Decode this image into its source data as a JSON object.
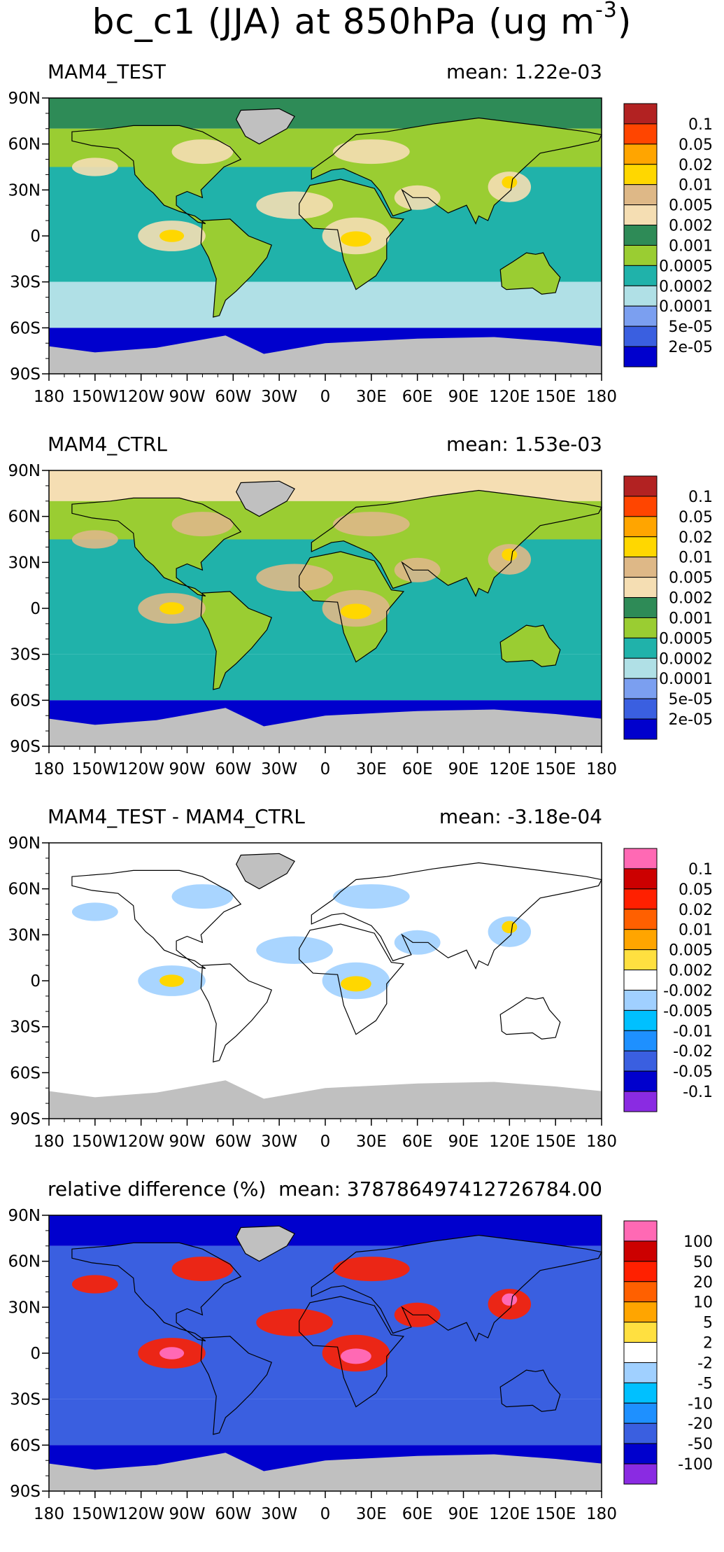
{
  "title": {
    "main": "bc_c1 (JJA) at 850hPa (ug m",
    "exponent": "-3",
    "close": ")"
  },
  "axes": {
    "lon_labels": [
      "180",
      "150W",
      "120W",
      "90W",
      "60W",
      "30W",
      "0",
      "30E",
      "60E",
      "90E",
      "120E",
      "150E",
      "180"
    ],
    "lat_labels": [
      "90N",
      "60N",
      "30N",
      "0",
      "30S",
      "60S",
      "90S"
    ]
  },
  "panels": [
    {
      "id": "test",
      "title": "MAM4_TEST",
      "mean": "mean: 1.22e-03",
      "colorbar_labels": [
        "0.1",
        "0.05",
        "0.02",
        "0.01",
        "0.005",
        "0.002",
        "0.001",
        "0.0005",
        "0.0002",
        "0.0001",
        "5e-05",
        "2e-05"
      ],
      "colorbar_colors": [
        "#b22222",
        "#ff4500",
        "#ffa500",
        "#ffd700",
        "#deb887",
        "#f5deb3",
        "#2e8b57",
        "#9acd32",
        "#20b2aa",
        "#b0e0e6",
        "#7b9ff0",
        "#3a5fe0",
        "#0000cd"
      ],
      "palette": {
        "ocean_south": "#b0e0e6",
        "ocean_mid": "#20b2aa",
        "ocean_north": "#9acd32",
        "arctic": "#2e8b57",
        "antarctic_band": "#0000cd",
        "ice": "#c0c0c0",
        "land": "#9acd32",
        "blob": "#f5deb3",
        "hot": "#ffd700"
      }
    },
    {
      "id": "ctrl",
      "title": "MAM4_CTRL",
      "mean": "mean: 1.53e-03",
      "colorbar_labels": [
        "0.1",
        "0.05",
        "0.02",
        "0.01",
        "0.005",
        "0.002",
        "0.001",
        "0.0005",
        "0.0002",
        "0.0001",
        "5e-05",
        "2e-05"
      ],
      "colorbar_colors": [
        "#b22222",
        "#ff4500",
        "#ffa500",
        "#ffd700",
        "#deb887",
        "#f5deb3",
        "#2e8b57",
        "#9acd32",
        "#20b2aa",
        "#b0e0e6",
        "#7b9ff0",
        "#3a5fe0",
        "#0000cd"
      ],
      "palette": {
        "ocean_south": "#20b2aa",
        "ocean_mid": "#20b2aa",
        "ocean_north": "#9acd32",
        "arctic": "#f5deb3",
        "antarctic_band": "#0000cd",
        "ice": "#c0c0c0",
        "land": "#9acd32",
        "blob": "#deb887",
        "hot": "#ffd700"
      }
    },
    {
      "id": "diff",
      "title": "MAM4_TEST - MAM4_CTRL",
      "mean": "mean: -3.18e-04",
      "colorbar_labels": [
        "0.1",
        "0.05",
        "0.02",
        "0.01",
        "0.005",
        "0.002",
        "-0.002",
        "-0.005",
        "-0.01",
        "-0.02",
        "-0.05",
        "-0.1"
      ],
      "colorbar_colors": [
        "#ff69b4",
        "#cc0000",
        "#ff2000",
        "#ff6000",
        "#ffa500",
        "#ffe040",
        "#ffffff",
        "#a0d0ff",
        "#00c0ff",
        "#1e90ff",
        "#3a5fe0",
        "#0000cd",
        "#8a2be2"
      ],
      "palette": {
        "ocean_south": "#ffffff",
        "ocean_mid": "#ffffff",
        "ocean_north": "#ffffff",
        "arctic": "#ffffff",
        "antarctic_band": "#ffffff",
        "ice": "#c0c0c0",
        "land": "#ffffff",
        "blob": "#a0d0ff",
        "hot": "#ffd700"
      }
    },
    {
      "id": "rel",
      "title": "relative difference (%)",
      "mean": "mean: 378786497412726784.00",
      "colorbar_labels": [
        "100",
        "50",
        "20",
        "10",
        "5",
        "2",
        "-2",
        "-5",
        "-10",
        "-20",
        "-50",
        "-100"
      ],
      "colorbar_colors": [
        "#ff69b4",
        "#cc0000",
        "#ff2000",
        "#ff6000",
        "#ffa500",
        "#ffe040",
        "#ffffff",
        "#a0d0ff",
        "#00c0ff",
        "#1e90ff",
        "#3a5fe0",
        "#0000cd",
        "#8a2be2"
      ],
      "palette": {
        "ocean_south": "#3a5fe0",
        "ocean_mid": "#3a5fe0",
        "ocean_north": "#3a5fe0",
        "arctic": "#0000cd",
        "antarctic_band": "#0000cd",
        "ice": "#c0c0c0",
        "land": "#3a5fe0",
        "blob": "#ff2000",
        "hot": "#ff69b4"
      }
    }
  ]
}
